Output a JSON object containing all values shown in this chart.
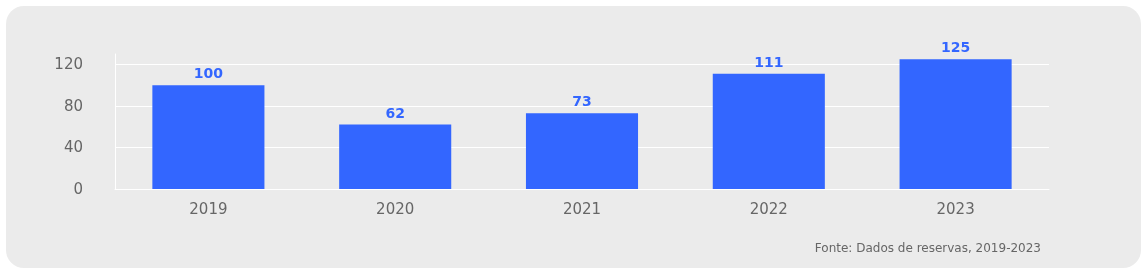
{
  "chart_data": {
    "type": "bar",
    "categories": [
      "2019",
      "2020",
      "2021",
      "2022",
      "2023"
    ],
    "values": [
      100,
      62,
      73,
      111,
      125
    ],
    "color": "#3366ff",
    "ylim": [
      0,
      130
    ],
    "yticks": [
      0,
      40,
      80,
      120
    ],
    "grid": "y",
    "data_labels": true,
    "annotations": [
      "Fonte: Dados de reservas, 2019-2023"
    ]
  }
}
